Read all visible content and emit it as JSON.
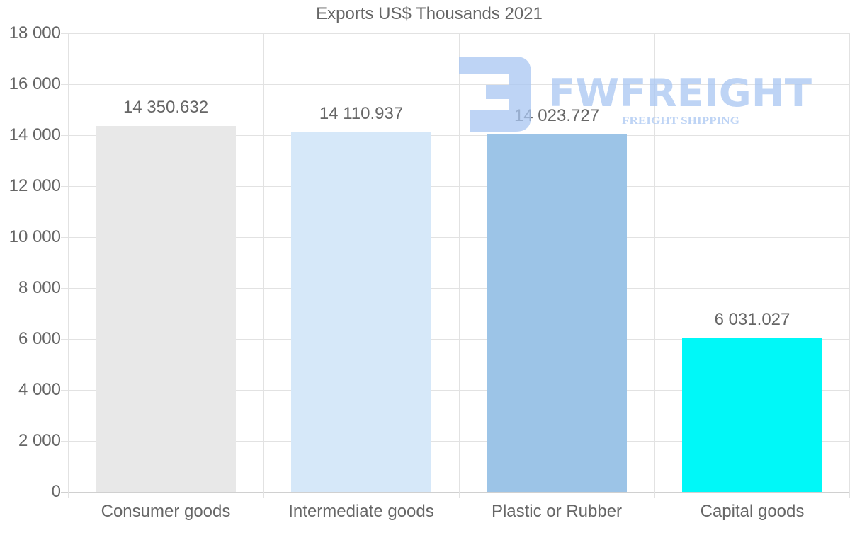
{
  "chart_data": {
    "type": "bar",
    "title": "Exports US$ Thousands 2021",
    "xlabel": "",
    "ylabel": "",
    "categories": [
      "Consumer goods",
      "Intermediate goods",
      "Plastic or Rubber",
      "Capital goods"
    ],
    "values": [
      14350.632,
      14110.937,
      14023.727,
      6031.027
    ],
    "value_labels": [
      "14 350.632",
      "14 110.937",
      "14 023.727",
      "6 031.027"
    ],
    "colors": [
      "#e8e8e8",
      "#d6e8f9",
      "#9cc4e7",
      "#00f8f8"
    ],
    "ylim": [
      0,
      18000
    ],
    "yticks": [
      0,
      2000,
      4000,
      6000,
      8000,
      10000,
      12000,
      14000,
      16000,
      18000
    ],
    "ytick_labels": [
      "0",
      "2 000",
      "4 000",
      "6 000",
      "8 000",
      "10 000",
      "12 000",
      "14 000",
      "16 000",
      "18 000"
    ],
    "grid": true,
    "legend": null
  },
  "watermark": {
    "brand": "FWFREIGHT",
    "tagline": "FREIGHT SHIPPING",
    "color": "#a9c6f2"
  }
}
